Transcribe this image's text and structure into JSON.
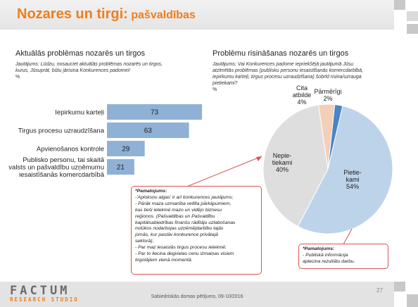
{
  "slide": {
    "title_main": "Nozares un tirgi:",
    "title_sub": "pašvaldības",
    "footer_text": "Sabiedriskās domas pētījums, 09-10/2016",
    "page_number": "27",
    "logo_main": "FACTUM",
    "logo_sub": "RESEARCH STUDIO",
    "accent_color": "#f07d1a"
  },
  "left": {
    "title": "Aktuālās problēmas nozarēs un tirgos",
    "note_lines": [
      "Jautājums: Lūdzu, nosauciet aktuālās problēmas nozarēs un tirgos,",
      "kurus, Jūsuprāt, būtu jārisina Konkurences padomei!",
      "%"
    ]
  },
  "right": {
    "title": "Problēmu risināšanas nozarēs un tirgos",
    "note_lines": [
      "Jautājums: Vai Konkurences padome iepriekšējā jautājumā Jūsu",
      "atzīmētās problēmas (publisku personu iesaistīšanās komercdarbībā,",
      "iepirkumu karteļi, tirgus procesu uzraudzīšana) šobrīd risina/uzrauga",
      "pietiekami?",
      "%"
    ]
  },
  "chart_data": [
    {
      "type": "bar",
      "orientation": "horizontal",
      "categories": [
        "Iepirkumu karteļi",
        "Tirgus procesu uzraudzīšana",
        "Apvienošanos kontrole",
        "Publisko personu, tai skaitā valsts un pašvaldību uzņēmumu iesaistīšanās komercdarbībā"
      ],
      "category_lines": [
        [
          "Iepirkumu karteļi"
        ],
        [
          "Tirgus procesu uzraudzīšana"
        ],
        [
          "Apvienošanos kontrole"
        ],
        [
          "Publisko personu, tai skaitā",
          "valsts un pašvaldību uzņēmumu",
          "iesaistīšanās komercdarbībā"
        ]
      ],
      "values": [
        73,
        63,
        29,
        21
      ],
      "value_labels": [
        "73",
        "63",
        "29",
        "21"
      ],
      "title": "Aktuālās problēmas nozarēs un tirgos",
      "xlim": [
        0,
        100
      ],
      "grid": false,
      "bar_color": "#8fb1d6"
    },
    {
      "type": "pie",
      "labels": [
        "Pietiekami",
        "Nepietiekami",
        "Cita atbilde",
        "Pārmērīgi"
      ],
      "label_lines": [
        [
          "Pietie-",
          "kami"
        ],
        [
          "Nepie-",
          "tiekami"
        ],
        [
          "Cita",
          "atbilde"
        ],
        [
          "Pārmērīgi"
        ]
      ],
      "values": [
        54,
        40,
        4,
        2
      ],
      "value_labels": [
        "54%",
        "40%",
        "4%",
        "2%"
      ],
      "colors": [
        "#bdd3ea",
        "#dedede",
        "#f2cfb6",
        "#4a86c5"
      ],
      "title": "Problēmu risināšanas nozarēs un tirgos"
    }
  ],
  "callouts": {
    "left": {
      "heading": "*Pamatojums:",
      "lines": [
        "-'Aploksņu algas' ir arī konkurences jautājums;",
        "- Pārāk maza uzmanība veltīta pārkāpumiem,",
        "kas tieši ietekmē mazo un vidējo biznesu",
        "reģionos. (Pašvaldības un Pašvaldību",
        "kapitālsabiedrības finanšu rādītāju uzlabošanas",
        "nolūkos nodarbojas uzņēmējdarbību tajās",
        "jomās, kur pastāv konkurence privātajā",
        "sektorā);",
        "- Par maz iesaistās tirgus procesu ietekmē;",
        "- Par to liecina degvielas cenu izmaiņas visiem",
        "tirgotājiem vienā momentā."
      ]
    },
    "right": {
      "heading": "*Pamatojums:",
      "lines": [
        "- Publiskā informācija",
        "aplecina rezultātu darbu."
      ]
    }
  }
}
